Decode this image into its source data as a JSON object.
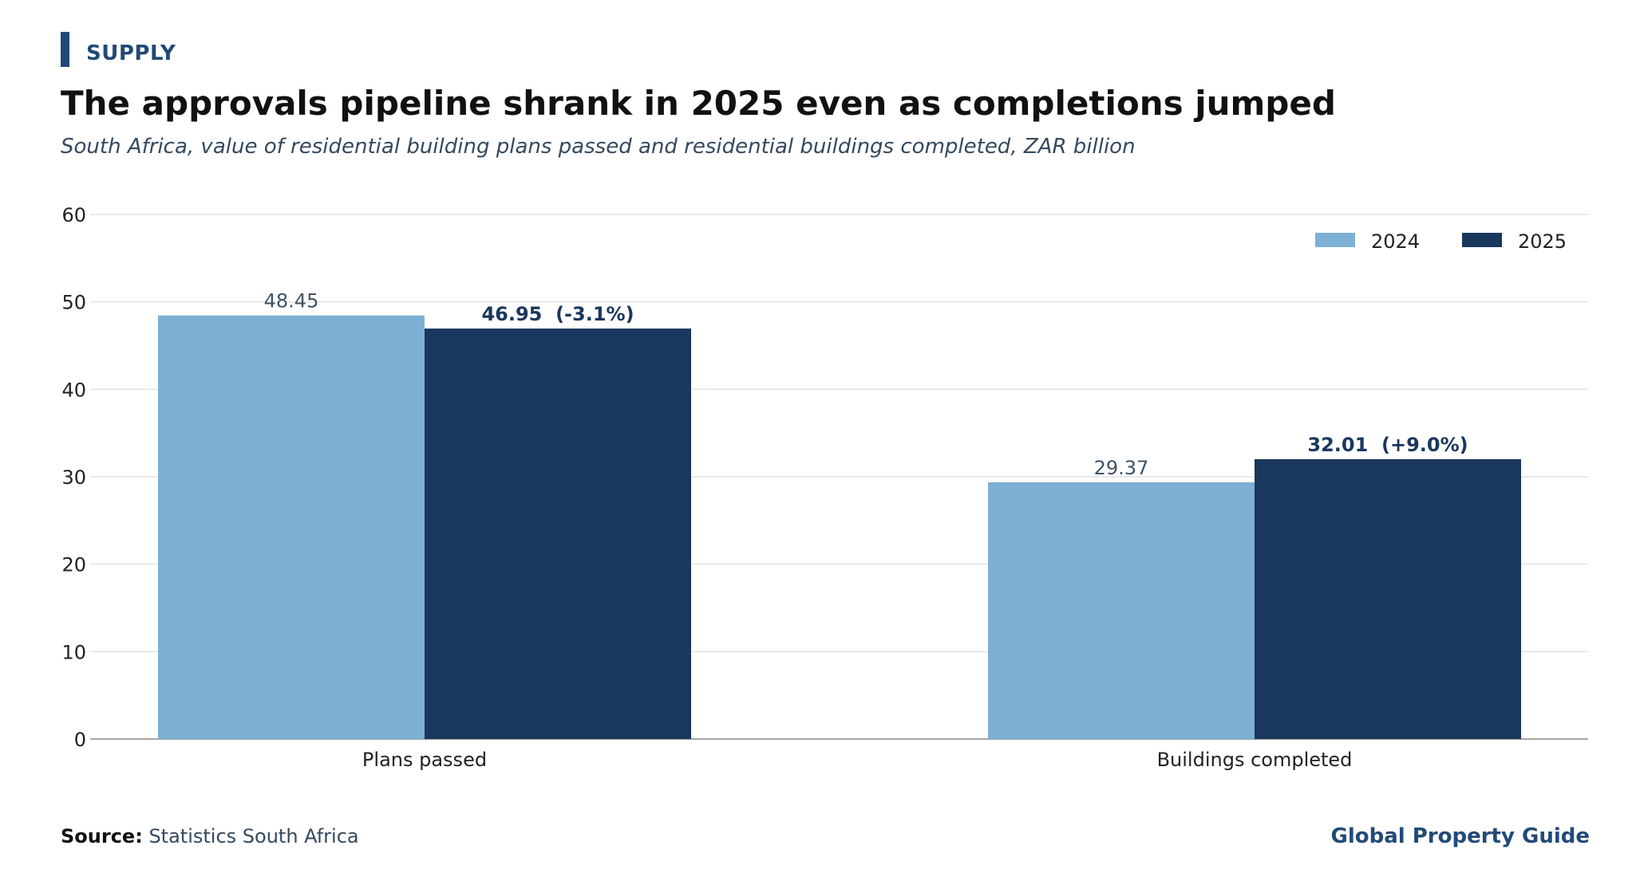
{
  "header": {
    "kicker": "SUPPLY",
    "title": "The approvals pipeline shrank in 2025 even as completions jumped",
    "subtitle": "South Africa, value of residential building plans passed and residential buildings completed, ZAR billion"
  },
  "footer": {
    "source_label": "Source:",
    "source_text": "Statistics South Africa",
    "brand": "Global Property Guide"
  },
  "colors": {
    "series_2024": "#7eafd4",
    "series_2025": "#1a375d",
    "kicker": "#224a78",
    "grid": "#dddddd",
    "axis": "#888888"
  },
  "chart_data": {
    "type": "bar",
    "categories": [
      "Plans passed",
      "Buildings completed"
    ],
    "series": [
      {
        "name": "2024",
        "values": [
          48.45,
          29.37
        ],
        "labels": [
          "48.45",
          "29.37"
        ]
      },
      {
        "name": "2025",
        "values": [
          46.95,
          32.01
        ],
        "labels": [
          "46.95  (-3.1%)",
          "32.01  (+9.0%)"
        ]
      }
    ],
    "ylim": [
      0,
      60
    ],
    "yticks": [
      0,
      10,
      20,
      30,
      40,
      50,
      60
    ],
    "grid": true,
    "legend_position": "top-right",
    "title": "",
    "xlabel": "",
    "ylabel": ""
  }
}
